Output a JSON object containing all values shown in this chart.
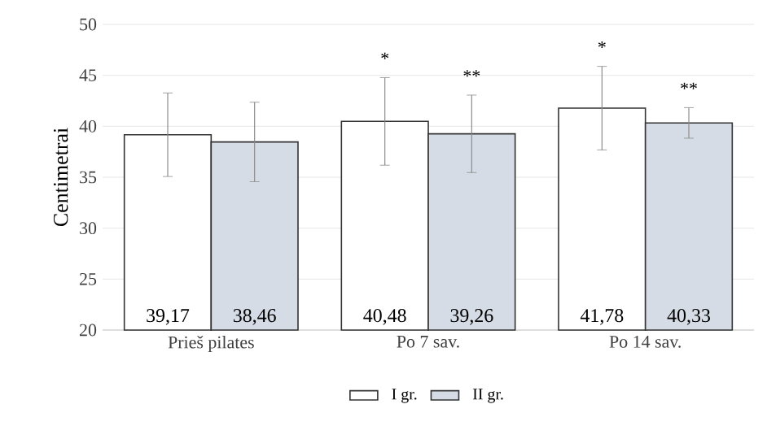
{
  "chart_data": {
    "type": "bar",
    "ylabel": "Centimetrai",
    "categories": [
      "Prieš pilates",
      "Po 7 sav.",
      "Po 14 sav."
    ],
    "series": [
      {
        "name": "I gr.",
        "color": "#ffffff",
        "values": [
          39.17,
          40.48,
          41.78
        ],
        "errors": [
          4.1,
          4.3,
          4.1
        ],
        "value_labels": [
          "39,17",
          "40,48",
          "41,78"
        ]
      },
      {
        "name": "II gr.",
        "color": "#d6dce5",
        "values": [
          38.46,
          39.26,
          40.33
        ],
        "errors": [
          3.9,
          3.8,
          1.5
        ],
        "value_labels": [
          "38,46",
          "39,26",
          "40,33"
        ]
      }
    ],
    "ylim": [
      20,
      50
    ],
    "yticks": [
      20,
      25,
      30,
      35,
      40,
      45,
      50
    ],
    "grid": "y",
    "legend": "bottom",
    "annotations": [
      "*",
      "**",
      "*",
      "**"
    ]
  }
}
